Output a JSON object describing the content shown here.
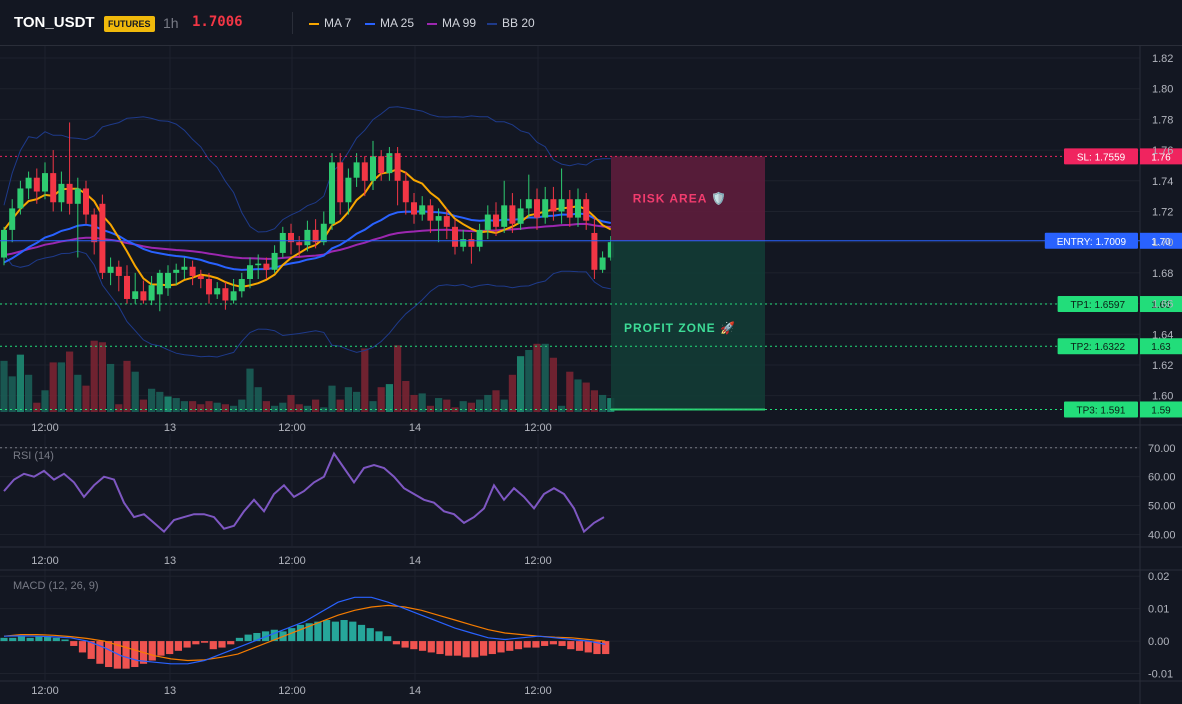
{
  "header": {
    "symbol": "TON_USDT",
    "badge": "FUTURES",
    "timeframe": "1h",
    "last_price": "1.7006",
    "price_color": "#f23645",
    "legend": [
      {
        "label": "MA 7",
        "color": "#f7a600"
      },
      {
        "label": "MA 25",
        "color": "#2962ff"
      },
      {
        "label": "MA 99",
        "color": "#9c27b0"
      },
      {
        "label": "BB 20",
        "color": "#1e3a8a"
      }
    ]
  },
  "colors": {
    "up": "#26a69a",
    "up_bright": "#2ecc71",
    "down": "#f23645",
    "grid": "#1e222d",
    "text": "#b2b5be",
    "bg": "#131722"
  },
  "chart_data": [
    {
      "type": "candlestick",
      "xaxis_ticks": [
        "12:00",
        "13",
        "12:00",
        "14",
        "12:00"
      ],
      "ylim": [
        1.59,
        1.82
      ],
      "yaxis_ticks": [
        "1.82",
        "1.80",
        "1.78",
        "1.76",
        "1.74",
        "1.72",
        "1.70",
        "1.68",
        "1.66",
        "1.64",
        "1.62",
        "1.60"
      ],
      "candles": [
        [
          1.69,
          1.708,
          1.685,
          1.71
        ],
        [
          1.708,
          1.722,
          1.7,
          1.728
        ],
        [
          1.722,
          1.735,
          1.718,
          1.74
        ],
        [
          1.735,
          1.742,
          1.728,
          1.746
        ],
        [
          1.742,
          1.733,
          1.725,
          1.748
        ],
        [
          1.733,
          1.745,
          1.728,
          1.752
        ],
        [
          1.745,
          1.726,
          1.72,
          1.76
        ],
        [
          1.726,
          1.738,
          1.72,
          1.746
        ],
        [
          1.738,
          1.725,
          1.718,
          1.778
        ],
        [
          1.725,
          1.735,
          1.69,
          1.742
        ],
        [
          1.735,
          1.718,
          1.712,
          1.74
        ],
        [
          1.718,
          1.7,
          1.692,
          1.722
        ],
        [
          1.725,
          1.68,
          1.676,
          1.731
        ],
        [
          1.68,
          1.684,
          1.672,
          1.69
        ],
        [
          1.684,
          1.678,
          1.668,
          1.688
        ],
        [
          1.678,
          1.663,
          1.66,
          1.685
        ],
        [
          1.663,
          1.668,
          1.66,
          1.68
        ],
        [
          1.668,
          1.662,
          1.66,
          1.675
        ],
        [
          1.662,
          1.672,
          1.659,
          1.678
        ],
        [
          1.666,
          1.68,
          1.655,
          1.682
        ],
        [
          1.67,
          1.68,
          1.665,
          1.685
        ],
        [
          1.68,
          1.682,
          1.672,
          1.686
        ],
        [
          1.682,
          1.684,
          1.676,
          1.69
        ],
        [
          1.684,
          1.678,
          1.672,
          1.688
        ],
        [
          1.678,
          1.676,
          1.67,
          1.682
        ],
        [
          1.676,
          1.666,
          1.66,
          1.68
        ],
        [
          1.666,
          1.67,
          1.663,
          1.674
        ],
        [
          1.67,
          1.662,
          1.656,
          1.674
        ],
        [
          1.662,
          1.668,
          1.66,
          1.676
        ],
        [
          1.668,
          1.676,
          1.664,
          1.68
        ],
        [
          1.676,
          1.685,
          1.67,
          1.69
        ],
        [
          1.685,
          1.686,
          1.676,
          1.692
        ],
        [
          1.686,
          1.682,
          1.676,
          1.69
        ],
        [
          1.682,
          1.693,
          1.68,
          1.698
        ],
        [
          1.693,
          1.706,
          1.69,
          1.71
        ],
        [
          1.706,
          1.7,
          1.692,
          1.712
        ],
        [
          1.7,
          1.698,
          1.69,
          1.704
        ],
        [
          1.698,
          1.708,
          1.694,
          1.714
        ],
        [
          1.708,
          1.7,
          1.696,
          1.715
        ],
        [
          1.7,
          1.712,
          1.698,
          1.72
        ],
        [
          1.712,
          1.752,
          1.708,
          1.758
        ],
        [
          1.752,
          1.726,
          1.718,
          1.758
        ],
        [
          1.726,
          1.742,
          1.718,
          1.748
        ],
        [
          1.742,
          1.752,
          1.736,
          1.758
        ],
        [
          1.752,
          1.74,
          1.73,
          1.756
        ],
        [
          1.74,
          1.756,
          1.734,
          1.766
        ],
        [
          1.756,
          1.745,
          1.74,
          1.76
        ],
        [
          1.745,
          1.758,
          1.74,
          1.762
        ],
        [
          1.758,
          1.74,
          1.724,
          1.762
        ],
        [
          1.74,
          1.726,
          1.718,
          1.746
        ],
        [
          1.726,
          1.718,
          1.712,
          1.732
        ],
        [
          1.718,
          1.724,
          1.714,
          1.73
        ],
        [
          1.724,
          1.714,
          1.706,
          1.728
        ],
        [
          1.714,
          1.717,
          1.7,
          1.722
        ],
        [
          1.717,
          1.71,
          1.702,
          1.722
        ],
        [
          1.71,
          1.697,
          1.692,
          1.715
        ],
        [
          1.697,
          1.702,
          1.694,
          1.708
        ],
        [
          1.702,
          1.697,
          1.686,
          1.706
        ],
        [
          1.697,
          1.708,
          1.694,
          1.712
        ],
        [
          1.708,
          1.718,
          1.702,
          1.724
        ],
        [
          1.718,
          1.71,
          1.704,
          1.726
        ],
        [
          1.71,
          1.724,
          1.706,
          1.74
        ],
        [
          1.724,
          1.712,
          1.706,
          1.732
        ],
        [
          1.712,
          1.722,
          1.708,
          1.728
        ],
        [
          1.722,
          1.728,
          1.716,
          1.744
        ],
        [
          1.728,
          1.716,
          1.708,
          1.735
        ],
        [
          1.716,
          1.728,
          1.712,
          1.736
        ],
        [
          1.728,
          1.72,
          1.714,
          1.736
        ],
        [
          1.72,
          1.728,
          1.712,
          1.748
        ],
        [
          1.728,
          1.716,
          1.71,
          1.734
        ],
        [
          1.716,
          1.728,
          1.71,
          1.735
        ],
        [
          1.728,
          1.714,
          1.708,
          1.732
        ],
        [
          1.706,
          1.682,
          1.676,
          1.716
        ],
        [
          1.682,
          1.69,
          1.68,
          1.694
        ],
        [
          1.69,
          1.7,
          1.688,
          1.704
        ]
      ],
      "volume": [
        33,
        23,
        37,
        24,
        6,
        14,
        32,
        32,
        39,
        24,
        17,
        46,
        45,
        31,
        5,
        33,
        26,
        8,
        15,
        13,
        10,
        9,
        7,
        7,
        5,
        7,
        6,
        5,
        4,
        8,
        28,
        16,
        7,
        4,
        6,
        11,
        5,
        4,
        8,
        3,
        17,
        8,
        16,
        13,
        41,
        7,
        16,
        18,
        43,
        20,
        11,
        12,
        4,
        9,
        8,
        3,
        7,
        6,
        8,
        11,
        14,
        8,
        24,
        36,
        40,
        44,
        44,
        35,
        4,
        26,
        21,
        19,
        14,
        11,
        9
      ],
      "volume_up_bright": [
        2,
        20,
        36,
        47,
        62,
        63,
        67,
        69,
        74
      ]
    },
    {
      "type": "line",
      "name": "RSI (14)",
      "ylim": [
        36,
        72
      ],
      "yaxis_ticks": [
        "70.00",
        "60.00",
        "50.00",
        "40.00"
      ],
      "values": [
        55,
        59,
        61,
        60,
        62,
        59,
        61,
        58,
        53,
        57,
        60,
        59,
        51,
        46,
        47,
        44,
        41,
        45,
        46,
        47,
        47,
        46,
        42,
        43,
        48,
        52,
        48,
        54,
        57,
        53,
        55,
        58,
        60,
        68,
        63,
        58,
        63,
        64,
        63,
        60,
        56,
        54,
        52,
        51,
        48,
        47,
        44,
        46,
        49,
        57,
        52,
        56,
        53,
        49,
        54,
        56,
        54,
        49,
        41,
        44,
        46
      ]
    },
    {
      "type": "bar+line",
      "name": "MACD (12, 26, 9)",
      "ylim": [
        -0.012,
        0.021
      ],
      "yaxis_ticks": [
        "0.02",
        "0.01",
        "0.00",
        "-0.01"
      ],
      "histogram": [
        0.001,
        0.001,
        0.0015,
        0.001,
        0.0015,
        0.0015,
        0.001,
        0.0005,
        -0.0015,
        -0.0035,
        -0.0055,
        -0.007,
        -0.008,
        -0.0085,
        -0.0085,
        -0.008,
        -0.007,
        -0.006,
        -0.0045,
        -0.004,
        -0.003,
        -0.002,
        -0.001,
        -0.0005,
        -0.0025,
        -0.002,
        -0.001,
        0.001,
        0.002,
        0.0025,
        0.003,
        0.0035,
        0.003,
        0.004,
        0.005,
        0.0055,
        0.006,
        0.0065,
        0.006,
        0.0065,
        0.006,
        0.005,
        0.004,
        0.003,
        0.0015,
        -0.001,
        -0.002,
        -0.0025,
        -0.003,
        -0.0035,
        -0.004,
        -0.0045,
        -0.0045,
        -0.005,
        -0.005,
        -0.0045,
        -0.004,
        -0.0035,
        -0.003,
        -0.0025,
        -0.002,
        -0.002,
        -0.0015,
        -0.001,
        -0.0015,
        -0.0025,
        -0.003,
        -0.0035,
        -0.004,
        -0.004
      ],
      "macd": [
        0.0015,
        0.0016,
        0.0015,
        0.0013,
        0.001,
        0.0,
        -0.002,
        -0.0045,
        -0.006,
        -0.0065,
        -0.007,
        -0.007,
        -0.006,
        -0.004,
        -0.002,
        0.0,
        0.002,
        0.004,
        0.006,
        0.009,
        0.012,
        0.0135,
        0.0135,
        0.012,
        0.01,
        0.008,
        0.006,
        0.004,
        0.0025,
        0.001,
        0.0005,
        0.001,
        0.0015,
        0.001,
        0.0005,
        0.0,
        -0.001
      ],
      "signal": [
        0.0015,
        0.002,
        0.002,
        0.0018,
        0.0014,
        0.0008,
        0.0,
        -0.0015,
        -0.003,
        -0.0045,
        -0.0055,
        -0.006,
        -0.0058,
        -0.005,
        -0.004,
        -0.002,
        0.0,
        0.002,
        0.004,
        0.006,
        0.008,
        0.0095,
        0.0105,
        0.011,
        0.0105,
        0.0095,
        0.008,
        0.0065,
        0.005,
        0.0035,
        0.0025,
        0.002,
        0.0015,
        0.0012,
        0.001,
        0.0005,
        0.0
      ]
    }
  ],
  "trade": {
    "risk_label": "RISK AREA 🛡️",
    "profit_label": "PROFIT ZONE 🚀",
    "sl": {
      "label": "SL: 1.7559",
      "price": 1.7559,
      "axis": "1.76"
    },
    "entry": {
      "label": "ENTRY: 1.7009",
      "price": 1.7009,
      "axis": "1.70"
    },
    "tp": [
      {
        "label": "TP1: 1.6597",
        "price": 1.6597,
        "axis": "1.66"
      },
      {
        "label": "TP2: 1.6322",
        "price": 1.6322,
        "axis": "1.63"
      },
      {
        "label": "TP3: 1.591",
        "price": 1.591,
        "axis": "1.59"
      }
    ]
  }
}
